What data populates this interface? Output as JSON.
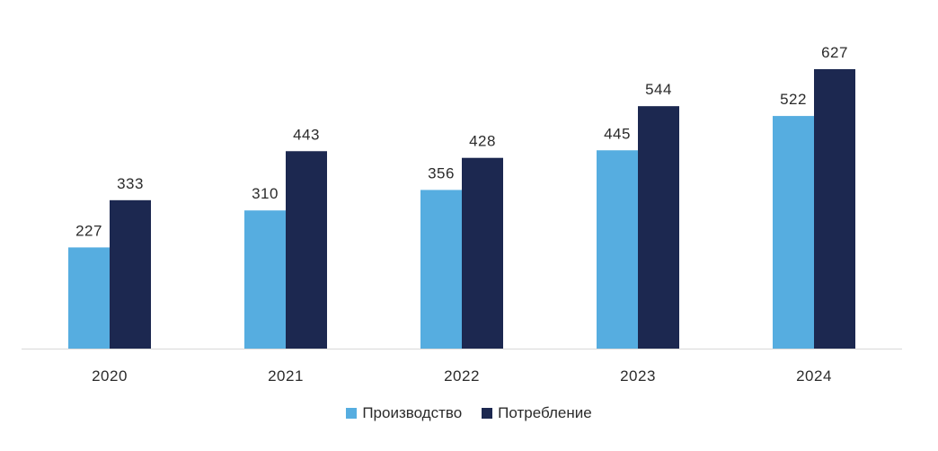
{
  "chart_data": {
    "type": "bar",
    "title": "",
    "xlabel": "",
    "ylabel": "",
    "categories": [
      "2020",
      "2021",
      "2022",
      "2023",
      "2024"
    ],
    "series": [
      {
        "name": "Производство",
        "values": [
          227,
          310,
          356,
          445,
          522
        ],
        "color": "#56ade0"
      },
      {
        "name": "Потребление",
        "values": [
          333,
          443,
          428,
          544,
          627
        ],
        "color": "#1c2850"
      }
    ],
    "ylim": [
      0,
      627
    ],
    "grid": false,
    "legend_position": "bottom"
  }
}
